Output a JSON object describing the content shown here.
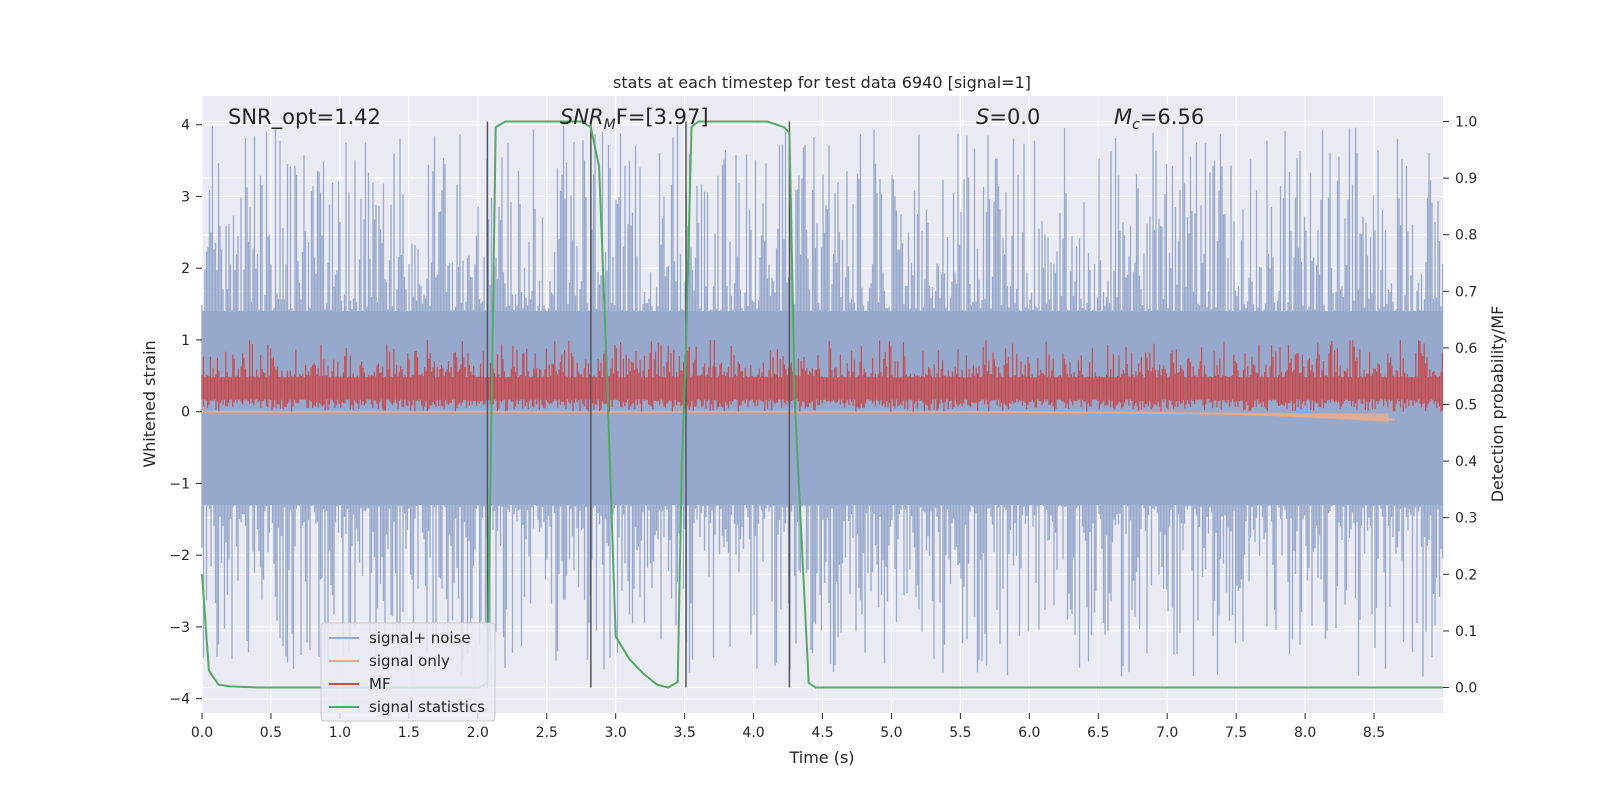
{
  "chart_data": {
    "type": "line",
    "title": "stats at each timestep for test data 6940 [signal=1]",
    "xlabel": "Time (s)",
    "ylabel": "Whitened strain",
    "ylabel_right": "Detection probability/MF",
    "xlim": [
      0.0,
      9.0
    ],
    "ylim": [
      -4.2,
      4.4
    ],
    "ylim_right": [
      -0.045,
      1.045
    ],
    "x_ticks": [
      "0.0",
      "0.5",
      "1.0",
      "1.5",
      "2.0",
      "2.5",
      "3.0",
      "3.5",
      "4.0",
      "4.5",
      "5.0",
      "5.5",
      "6.0",
      "6.5",
      "7.0",
      "7.5",
      "8.0",
      "8.5"
    ],
    "x_tick_values": [
      0,
      0.5,
      1,
      1.5,
      2,
      2.5,
      3,
      3.5,
      4,
      4.5,
      5,
      5.5,
      6,
      6.5,
      7,
      7.5,
      8,
      8.5
    ],
    "y_ticks": [
      "4",
      "3",
      "2",
      "1",
      "0",
      "−1",
      "−2",
      "−3",
      "−4"
    ],
    "y_tick_values": [
      4,
      3,
      2,
      1,
      0,
      -1,
      -2,
      -3,
      -4
    ],
    "y_ticks_right": [
      "1.0",
      "0.9",
      "0.8",
      "0.7",
      "0.6",
      "0.5",
      "0.4",
      "0.3",
      "0.2",
      "0.1",
      "0.0"
    ],
    "y_tick_values_right": [
      1.0,
      0.9,
      0.8,
      0.7,
      0.6,
      0.5,
      0.4,
      0.3,
      0.2,
      0.1,
      0.0
    ],
    "annotations": {
      "snr_opt": "SNR_opt=1.42",
      "snr_mf_sym": "SNR",
      "snr_mf_sub": "M",
      "snr_mf_rest": "F=[3.97]",
      "s_sym": "S",
      "s_val": "=0.0",
      "mc_sym": "M",
      "mc_sub": "c",
      "mc_val": "=6.56"
    },
    "vertical_lines": [
      2.07,
      2.82,
      3.51,
      4.26
    ],
    "legend": {
      "placement": "lower-left",
      "entries": [
        {
          "label": "signal+ noise",
          "color": "#97a9cc"
        },
        {
          "label": "signal only",
          "color": "#e8ab8f"
        },
        {
          "label": "MF",
          "color": "#c44e52"
        },
        {
          "label": "signal statistics",
          "color": "#55a868"
        }
      ]
    },
    "series": [
      {
        "name": "signal+ noise",
        "axis": "left",
        "style": "noise",
        "envelope_typical": [
          -1.5,
          1.6
        ],
        "extreme_max": 4.0,
        "extreme_min": -3.7
      },
      {
        "name": "signal only",
        "axis": "left",
        "x": [
          0,
          5.5,
          6.5,
          7.5,
          8.0,
          8.4,
          8.65
        ],
        "y": [
          0.0,
          0.0,
          -0.01,
          -0.03,
          -0.06,
          -0.09,
          -0.11
        ]
      },
      {
        "name": "MF",
        "axis": "left",
        "style": "noise",
        "envelope_typical": [
          0.05,
          0.6
        ],
        "extreme_max": 1.0,
        "extreme_min": 0.0
      },
      {
        "name": "signal statistics",
        "axis": "right",
        "x": [
          0.0,
          0.05,
          0.12,
          0.2,
          0.4,
          1.0,
          1.6,
          2.0,
          2.05,
          2.07,
          2.1,
          2.13,
          2.2,
          2.5,
          2.75,
          2.82,
          2.88,
          2.93,
          3.0,
          3.1,
          3.2,
          3.3,
          3.38,
          3.45,
          3.48,
          3.51,
          3.55,
          3.6,
          3.8,
          4.1,
          4.22,
          4.26,
          4.3,
          4.4,
          4.45,
          4.6,
          6.0,
          8.0,
          9.0
        ],
        "y": [
          0.2,
          0.03,
          0.005,
          0.002,
          0.0,
          0.0,
          0.0,
          0.0,
          0.005,
          0.01,
          0.5,
          0.99,
          1.0,
          1.0,
          1.0,
          0.99,
          0.92,
          0.6,
          0.09,
          0.05,
          0.025,
          0.005,
          0.0,
          0.01,
          0.4,
          0.6,
          0.99,
          1.0,
          1.0,
          1.0,
          0.99,
          0.98,
          0.5,
          0.008,
          0.0,
          0.0,
          0.0,
          0.0,
          0.0
        ]
      }
    ]
  }
}
